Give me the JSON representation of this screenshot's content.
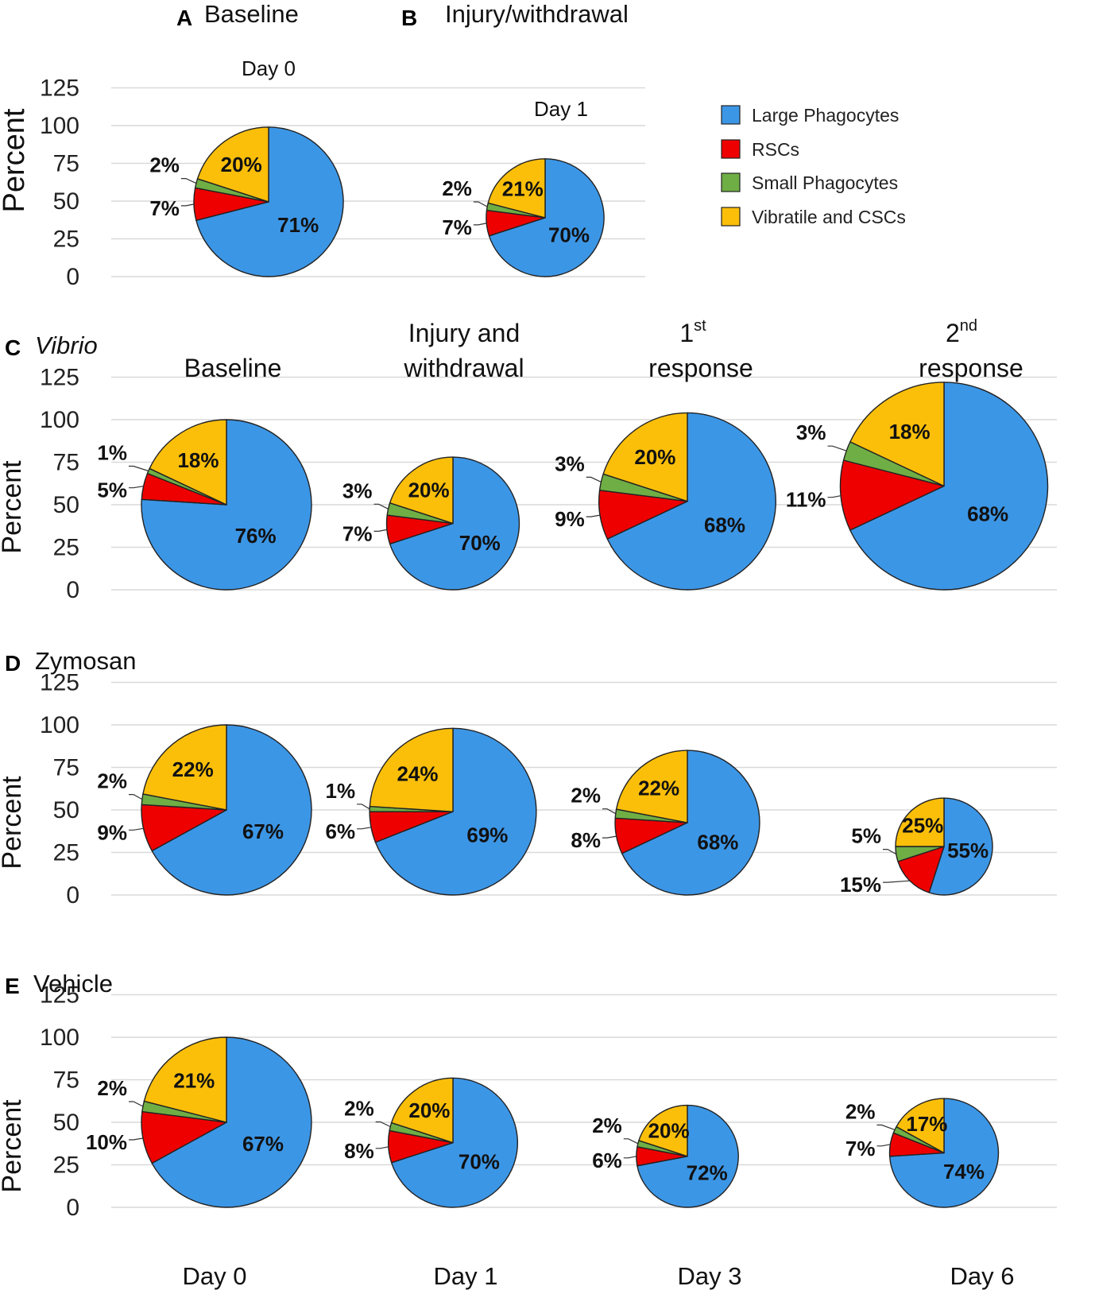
{
  "colors": {
    "large_phagocytes": "#3c96e6",
    "rscs": "#ee0000",
    "small_phagocytes": "#6fae45",
    "vibratile_cscs": "#fbbf0a",
    "outline": "#222222",
    "grid": "#d9d9d9"
  },
  "legend": [
    {
      "key": "large_phagocytes",
      "label": "Large Phagocytes"
    },
    {
      "key": "rscs",
      "label": "RSCs"
    },
    {
      "key": "small_phagocytes",
      "label": "Small Phagocytes"
    },
    {
      "key": "vibratile_cscs",
      "label": "Vibratile and CSCs"
    }
  ],
  "axis": {
    "ylabel": "Percent",
    "ticks": [
      "0",
      "25",
      "50",
      "75",
      "100",
      "125"
    ],
    "ylim": [
      0,
      125
    ]
  },
  "headings": {
    "a_letter": "A",
    "a_title": "Baseline",
    "a_day": "Day 0",
    "b_letter": "B",
    "b_title": "Injury/withdrawal",
    "b_day": "Day 1",
    "c_letter": "C",
    "c_title": "Vibrio",
    "c_col1": "Baseline",
    "c_col2_line1": "Injury and",
    "c_col2_line2": "withdrawal",
    "c_col3_num": "1",
    "c_col3_sup": "st",
    "c_col3_line2": "response",
    "c_col4_num": "2",
    "c_col4_sup": "nd",
    "c_col4_line2": "response",
    "d_letter": "D",
    "d_title": "Zymosan",
    "e_letter": "E",
    "e_title": "Vehicle"
  },
  "x_labels": [
    "Day 0",
    "Day 1",
    "Day 3",
    "Day 6"
  ],
  "chart_data": [
    {
      "type": "pie",
      "panel": "A",
      "title": "Baseline",
      "day": "Day 0",
      "total_percent": 99,
      "slices": {
        "large_phagocytes": 71,
        "rscs": 7,
        "small_phagocytes": 2,
        "vibratile_cscs": 20
      },
      "labels": {
        "large_phagocytes": "71%",
        "rscs": "7%",
        "small_phagocytes": "2%",
        "vibratile_cscs": "20%"
      }
    },
    {
      "type": "pie",
      "panel": "B",
      "title": "Injury/withdrawal",
      "day": "Day 1",
      "total_percent": 78,
      "slices": {
        "large_phagocytes": 70,
        "rscs": 7,
        "small_phagocytes": 2,
        "vibratile_cscs": 21
      },
      "labels": {
        "large_phagocytes": "70%",
        "rscs": "7%",
        "small_phagocytes": "2%",
        "vibratile_cscs": "21%"
      }
    },
    {
      "type": "pie",
      "panel": "C",
      "series": "Vibrio",
      "day": "Day 0",
      "total_percent": 100,
      "slices": {
        "large_phagocytes": 76,
        "rscs": 5,
        "small_phagocytes": 1,
        "vibratile_cscs": 18
      },
      "labels": {
        "large_phagocytes": "76%",
        "rscs": "5%",
        "small_phagocytes": "1%",
        "vibratile_cscs": "18%"
      }
    },
    {
      "type": "pie",
      "panel": "C",
      "series": "Vibrio",
      "day": "Day 1",
      "total_percent": 78,
      "slices": {
        "large_phagocytes": 70,
        "rscs": 7,
        "small_phagocytes": 3,
        "vibratile_cscs": 20
      },
      "labels": {
        "large_phagocytes": "70%",
        "rscs": "7%",
        "small_phagocytes": "3%",
        "vibratile_cscs": "20%"
      }
    },
    {
      "type": "pie",
      "panel": "C",
      "series": "Vibrio",
      "day": "Day 3",
      "total_percent": 104,
      "slices": {
        "large_phagocytes": 68,
        "rscs": 9,
        "small_phagocytes": 3,
        "vibratile_cscs": 20
      },
      "labels": {
        "large_phagocytes": "68%",
        "rscs": "9%",
        "small_phagocytes": "3%",
        "vibratile_cscs": "20%"
      }
    },
    {
      "type": "pie",
      "panel": "C",
      "series": "Vibrio",
      "day": "Day 6",
      "total_percent": 122,
      "slices": {
        "large_phagocytes": 68,
        "rscs": 11,
        "small_phagocytes": 3,
        "vibratile_cscs": 18
      },
      "labels": {
        "large_phagocytes": "68%",
        "rscs": "11%",
        "small_phagocytes": "3%",
        "vibratile_cscs": "18%"
      }
    },
    {
      "type": "pie",
      "panel": "D",
      "series": "Zymosan",
      "day": "Day 0",
      "total_percent": 100,
      "slices": {
        "large_phagocytes": 67,
        "rscs": 9,
        "small_phagocytes": 2,
        "vibratile_cscs": 22
      },
      "labels": {
        "large_phagocytes": "67%",
        "rscs": "9%",
        "small_phagocytes": "2%",
        "vibratile_cscs": "22%"
      }
    },
    {
      "type": "pie",
      "panel": "D",
      "series": "Zymosan",
      "day": "Day 1",
      "total_percent": 98,
      "slices": {
        "large_phagocytes": 69,
        "rscs": 6,
        "small_phagocytes": 1,
        "vibratile_cscs": 24
      },
      "labels": {
        "large_phagocytes": "69%",
        "rscs": "6%",
        "small_phagocytes": "1%",
        "vibratile_cscs": "24%"
      }
    },
    {
      "type": "pie",
      "panel": "D",
      "series": "Zymosan",
      "day": "Day 3",
      "total_percent": 85,
      "slices": {
        "large_phagocytes": 68,
        "rscs": 8,
        "small_phagocytes": 2,
        "vibratile_cscs": 22
      },
      "labels": {
        "large_phagocytes": "68%",
        "rscs": "8%",
        "small_phagocytes": "2%",
        "vibratile_cscs": "22%"
      }
    },
    {
      "type": "pie",
      "panel": "D",
      "series": "Zymosan",
      "day": "Day 6",
      "total_percent": 57,
      "slices": {
        "large_phagocytes": 55,
        "rscs": 15,
        "small_phagocytes": 5,
        "vibratile_cscs": 25
      },
      "labels": {
        "large_phagocytes": "55%",
        "rscs": "15%",
        "small_phagocytes": "5%",
        "vibratile_cscs": "25%"
      }
    },
    {
      "type": "pie",
      "panel": "E",
      "series": "Vehicle",
      "day": "Day 0",
      "total_percent": 100,
      "slices": {
        "large_phagocytes": 67,
        "rscs": 10,
        "small_phagocytes": 2,
        "vibratile_cscs": 21
      },
      "labels": {
        "large_phagocytes": "67%",
        "rscs": "10%",
        "small_phagocytes": "2%",
        "vibratile_cscs": "21%"
      }
    },
    {
      "type": "pie",
      "panel": "E",
      "series": "Vehicle",
      "day": "Day 1",
      "total_percent": 76,
      "slices": {
        "large_phagocytes": 70,
        "rscs": 8,
        "small_phagocytes": 2,
        "vibratile_cscs": 20
      },
      "labels": {
        "large_phagocytes": "70%",
        "rscs": "8%",
        "small_phagocytes": "2%",
        "vibratile_cscs": "20%"
      }
    },
    {
      "type": "pie",
      "panel": "E",
      "series": "Vehicle",
      "day": "Day 3",
      "total_percent": 60,
      "slices": {
        "large_phagocytes": 72,
        "rscs": 6,
        "small_phagocytes": 2,
        "vibratile_cscs": 20
      },
      "labels": {
        "large_phagocytes": "72%",
        "rscs": "6%",
        "small_phagocytes": "2%",
        "vibratile_cscs": "20%"
      }
    },
    {
      "type": "pie",
      "panel": "E",
      "series": "Vehicle",
      "day": "Day 6",
      "total_percent": 64,
      "slices": {
        "large_phagocytes": 74,
        "rscs": 7,
        "small_phagocytes": 2,
        "vibratile_cscs": 17
      },
      "labels": {
        "large_phagocytes": "74%",
        "rscs": "7%",
        "small_phagocytes": "2%",
        "vibratile_cscs": "17%"
      }
    }
  ]
}
